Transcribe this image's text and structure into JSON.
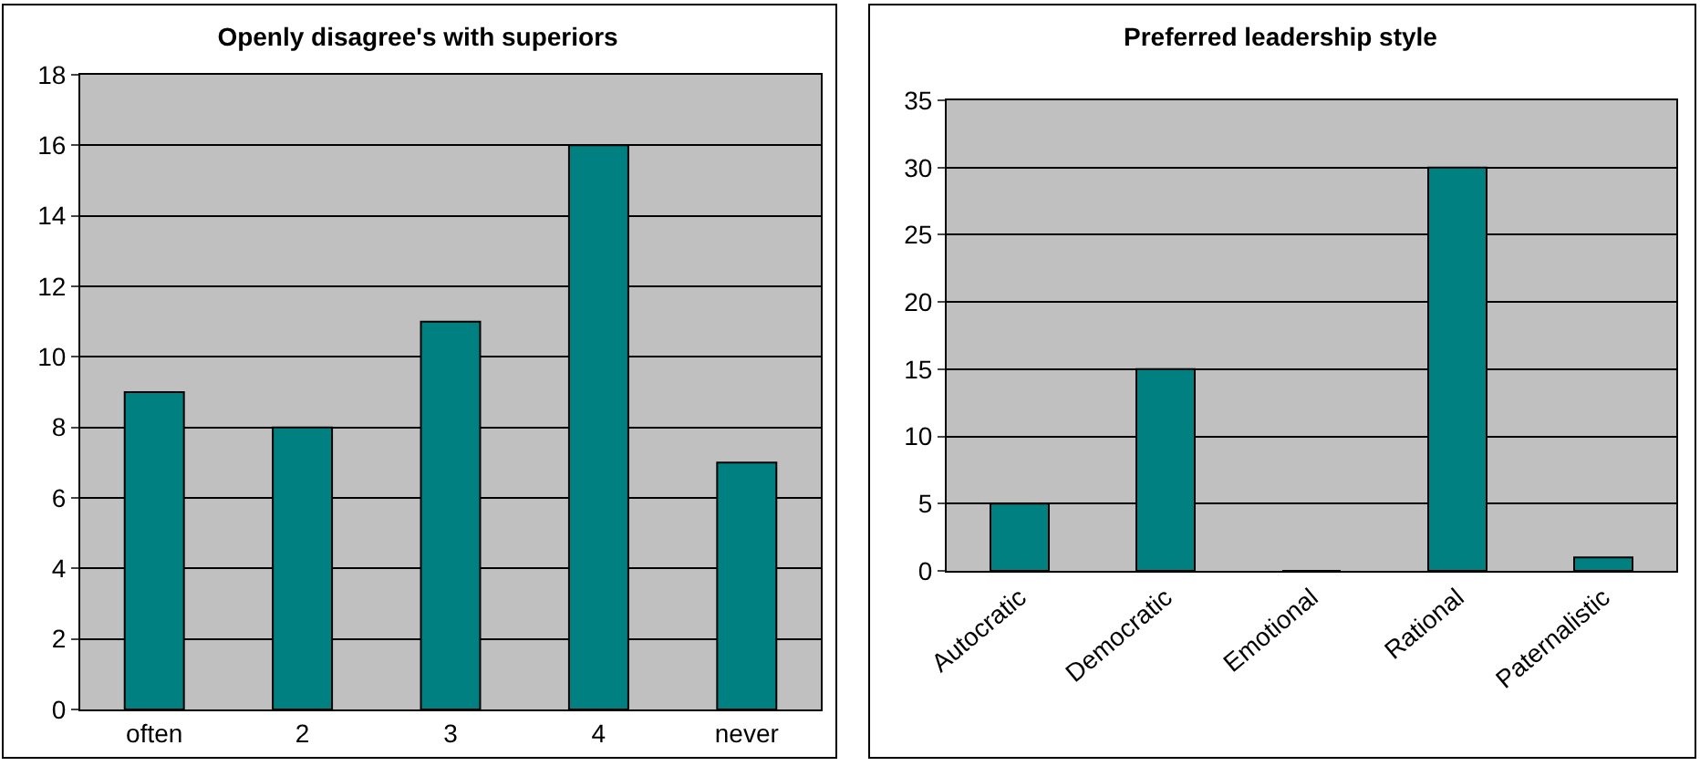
{
  "chart_data": [
    {
      "type": "bar",
      "title": "Openly disagree's with superiors",
      "categories": [
        "often",
        "2",
        "3",
        "4",
        "never"
      ],
      "values": [
        9,
        8,
        11,
        16,
        7
      ],
      "color": "#008080",
      "ylim": [
        0,
        18
      ],
      "yticks": [
        0,
        2,
        4,
        6,
        8,
        10,
        12,
        14,
        16,
        18
      ],
      "grid": "y"
    },
    {
      "type": "bar",
      "title": "Preferred leadership style",
      "categories": [
        "Autocratic",
        "Democratic",
        "Emotional",
        "Rational",
        "Paternalistic"
      ],
      "values": [
        5,
        15,
        0,
        30,
        1
      ],
      "color": "#008080",
      "ylim": [
        0,
        35
      ],
      "yticks": [
        0,
        5,
        10,
        15,
        20,
        25,
        30,
        35
      ],
      "grid": "y"
    }
  ]
}
